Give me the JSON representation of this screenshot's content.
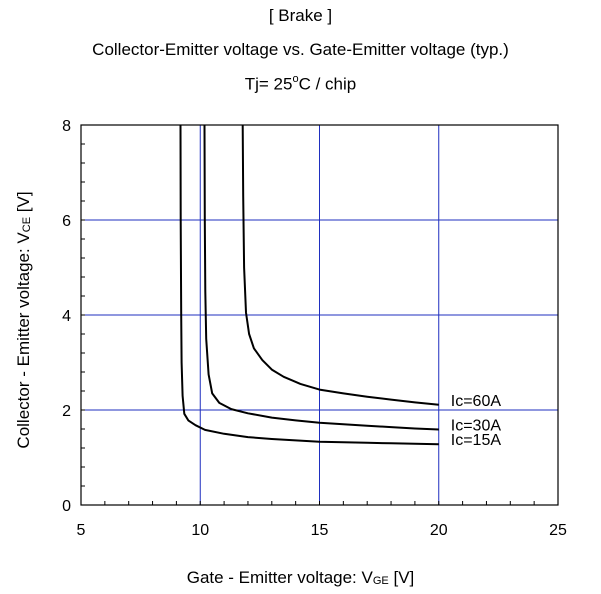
{
  "chart_data": {
    "type": "line",
    "title": "[ Brake ]",
    "subtitle": "Collector-Emitter voltage  vs. Gate-Emitter voltage (typ.)",
    "condition": {
      "prefix": "Tj= 25",
      "degree": "o",
      "suffix": "C / chip"
    },
    "xlabel": {
      "main": "Gate - Emitter voltage: V",
      "sub": "GE",
      "unit": " [V]"
    },
    "ylabel": {
      "main": "Collector - Emitter voltage: V",
      "sub": "CE",
      "unit": " [V]"
    },
    "xlim": [
      5,
      25
    ],
    "ylim": [
      0,
      8
    ],
    "xticks": [
      5,
      10,
      15,
      20,
      25
    ],
    "yticks": [
      0,
      2,
      4,
      6,
      8
    ],
    "grid": true,
    "colors": {
      "grid": "#1f2fbf",
      "line": "#000000",
      "frame": "#000000"
    },
    "series": [
      {
        "name": "Ic=60A",
        "x": [
          11.78,
          11.8,
          11.84,
          11.92,
          12.05,
          12.25,
          12.6,
          13.0,
          13.5,
          14.2,
          15.0,
          16.0,
          17.0,
          18.0,
          19.0,
          20.0
        ],
        "y": [
          8.0,
          6.5,
          5.0,
          4.05,
          3.6,
          3.3,
          3.05,
          2.85,
          2.7,
          2.55,
          2.43,
          2.35,
          2.28,
          2.22,
          2.16,
          2.11
        ]
      },
      {
        "name": "Ic=30A",
        "x": [
          10.18,
          10.19,
          10.21,
          10.25,
          10.35,
          10.5,
          10.8,
          11.3,
          12.0,
          13.0,
          14.0,
          15.0,
          16.0,
          17.0,
          18.0,
          19.0,
          20.0
        ],
        "y": [
          8.0,
          6.0,
          4.5,
          3.5,
          2.75,
          2.35,
          2.15,
          2.02,
          1.93,
          1.84,
          1.78,
          1.73,
          1.7,
          1.67,
          1.64,
          1.61,
          1.59
        ]
      },
      {
        "name": "Ic=15A",
        "x": [
          9.17,
          9.18,
          9.2,
          9.22,
          9.26,
          9.33,
          9.5,
          9.8,
          10.2,
          11.0,
          12.0,
          13.0,
          14.0,
          15.0,
          16.0,
          17.0,
          18.0,
          19.0,
          20.0
        ],
        "y": [
          8.0,
          6.0,
          4.0,
          3.0,
          2.3,
          1.92,
          1.78,
          1.68,
          1.58,
          1.5,
          1.43,
          1.39,
          1.36,
          1.33,
          1.32,
          1.31,
          1.3,
          1.29,
          1.28
        ]
      }
    ]
  }
}
